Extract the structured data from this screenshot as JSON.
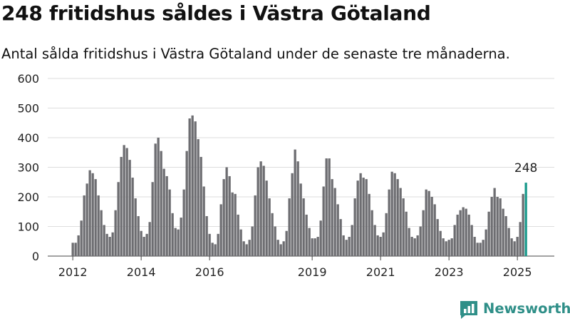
{
  "title": "248 fritidshus såldes i Västra Götaland",
  "subtitle": "Antal sålda fritidshus i Västra Götaland under de senaste tre månaderna.",
  "brand": "Newsworthy",
  "colors": {
    "bar": "#6d6d71",
    "highlight": "#1a9a8c",
    "grid": "#dddddd",
    "brand": "#2f8f88"
  },
  "chart_data": {
    "type": "bar",
    "ylim": [
      0,
      600
    ],
    "yticks": [
      0,
      100,
      200,
      300,
      400,
      500,
      600
    ],
    "xticks": [
      "2012",
      "2014",
      "2016",
      "2019",
      "2021",
      "2023",
      "2025"
    ],
    "grid": true,
    "start": "2012-01",
    "values": [
      45,
      45,
      70,
      120,
      205,
      245,
      290,
      280,
      260,
      205,
      155,
      105,
      75,
      65,
      80,
      155,
      250,
      335,
      375,
      365,
      325,
      265,
      195,
      135,
      85,
      65,
      75,
      115,
      250,
      380,
      400,
      355,
      295,
      270,
      225,
      145,
      95,
      90,
      130,
      225,
      355,
      465,
      475,
      455,
      395,
      335,
      235,
      135,
      75,
      45,
      40,
      75,
      175,
      260,
      300,
      270,
      215,
      210,
      140,
      90,
      50,
      40,
      55,
      100,
      205,
      300,
      320,
      305,
      255,
      195,
      145,
      100,
      55,
      40,
      50,
      85,
      195,
      280,
      360,
      320,
      245,
      195,
      140,
      95,
      60,
      60,
      65,
      120,
      235,
      330,
      330,
      260,
      230,
      175,
      125,
      70,
      55,
      65,
      105,
      195,
      255,
      280,
      265,
      260,
      210,
      155,
      105,
      70,
      65,
      80,
      145,
      225,
      285,
      280,
      260,
      230,
      195,
      150,
      95,
      65,
      60,
      70,
      100,
      155,
      225,
      220,
      200,
      175,
      125,
      85,
      60,
      50,
      55,
      60,
      105,
      140,
      155,
      165,
      160,
      140,
      105,
      65,
      45,
      45,
      55,
      90,
      150,
      200,
      230,
      200,
      195,
      160,
      135,
      95,
      60,
      50,
      65,
      115,
      210,
      248
    ],
    "annotation": {
      "label": "248",
      "value": 248,
      "index": "last"
    }
  }
}
